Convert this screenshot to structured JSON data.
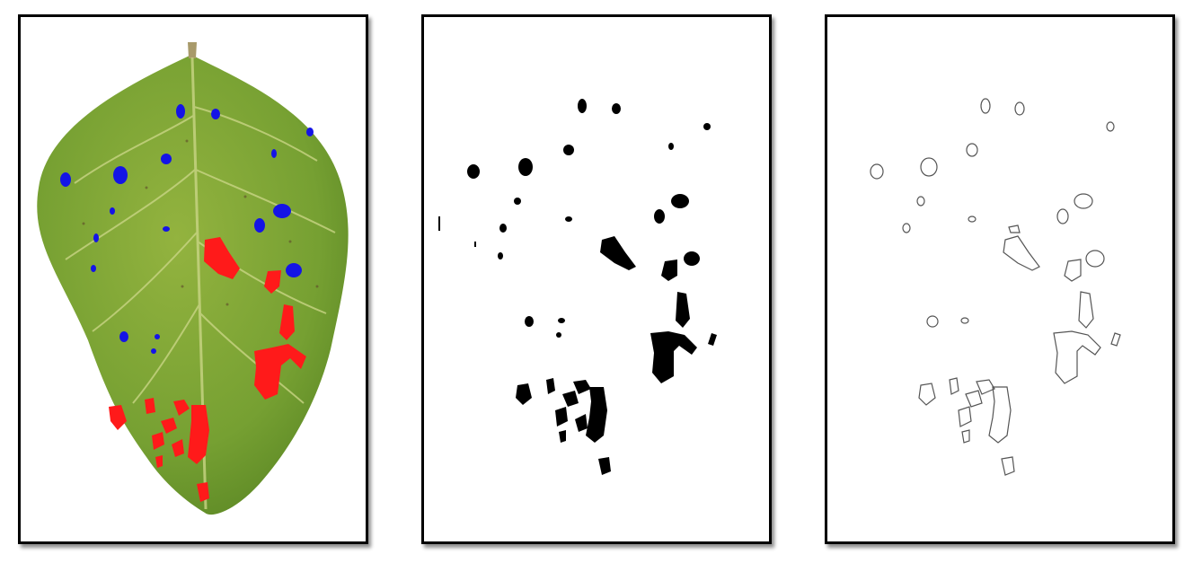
{
  "figure": {
    "panels": [
      {
        "id": "leaf",
        "content": "leaf-with-lesion-overlay"
      },
      {
        "id": "mask",
        "content": "binary-lesion-mask"
      },
      {
        "id": "outline",
        "content": "lesion-contours"
      }
    ]
  },
  "colors": {
    "leaf": "#7fa33a",
    "leaf_dark": "#5c7f24",
    "vein": "#c8d48a",
    "spot_blue": "#1414e6",
    "spot_red": "#ff1a1a",
    "mask": "#000000",
    "frame": "#000000"
  }
}
